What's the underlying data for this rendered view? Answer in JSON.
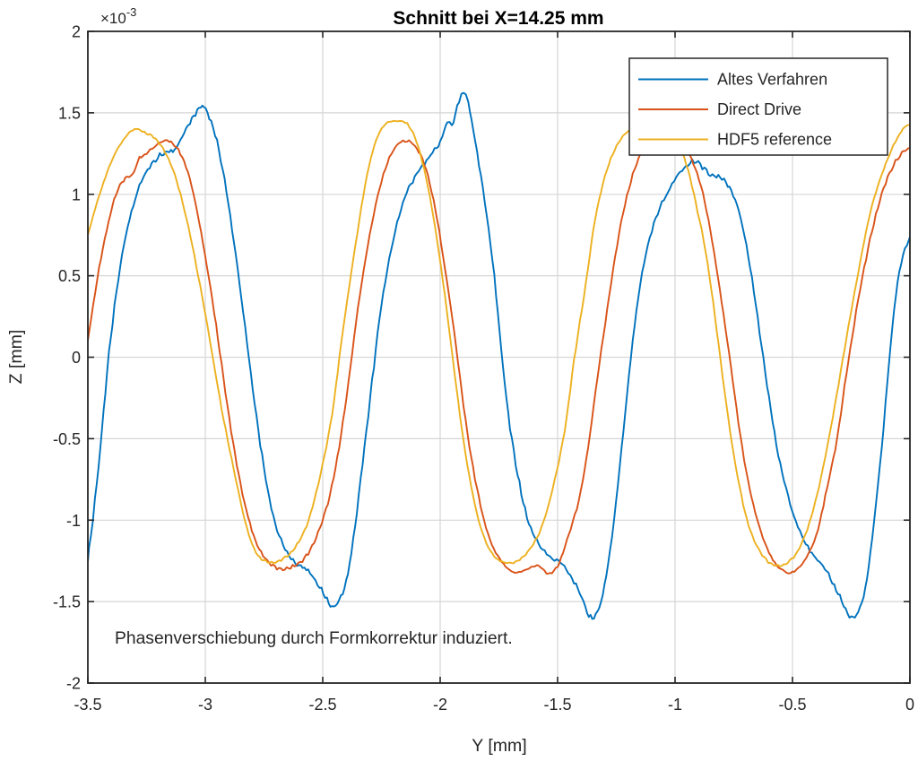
{
  "title": "Schnitt bei X=14.25 mm",
  "axes": {
    "offset_base": "×10",
    "offset_exp": "-3",
    "xlabel": "Y [mm]",
    "ylabel": "Z [mm]",
    "x_ticks": [
      "-3.5",
      "-3",
      "-2.5",
      "-2",
      "-1.5",
      "-1",
      "-0.5",
      "0"
    ],
    "y_ticks": [
      "2",
      "1.5",
      "1",
      "0.5",
      "0",
      "-0.5",
      "-1",
      "-1.5",
      "-2"
    ]
  },
  "annotation": "Phasenverschiebung durch Formkorrektur induziert.",
  "legend": {
    "items": [
      {
        "label": "Altes Verfahren",
        "color": "#0072BD"
      },
      {
        "label": "Direct Drive",
        "color": "#D95319"
      },
      {
        "label": "HDF5 reference",
        "color": "#EDB120"
      }
    ]
  },
  "colors": {
    "axis": "#262626",
    "grid": "#d6d6d6",
    "background": "#ffffff"
  },
  "chart_data": {
    "type": "line",
    "title": "Schnitt bei X=14.25 mm",
    "xlabel": "Y [mm]",
    "ylabel": "Z [mm]",
    "x_unit": "mm",
    "z_unit_scale": "1e-3 mm",
    "xlim": [
      -3.5,
      0
    ],
    "ylim_e3": [
      -2,
      2
    ],
    "grid": true,
    "legend_position": "top-right",
    "series": [
      {
        "name": "Altes Verfahren",
        "color": "#0072BD",
        "noise": 0.014,
        "seed": 7,
        "points_y_z_e3": [
          [
            -3.5,
            -1.25
          ],
          [
            -3.47,
            -0.88
          ],
          [
            -3.44,
            -0.45
          ],
          [
            -3.41,
            0.02
          ],
          [
            -3.37,
            0.48
          ],
          [
            -3.33,
            0.8
          ],
          [
            -3.28,
            1.05
          ],
          [
            -3.22,
            1.2
          ],
          [
            -3.17,
            1.26
          ],
          [
            -3.13,
            1.27
          ],
          [
            -3.09,
            1.38
          ],
          [
            -3.05,
            1.48
          ],
          [
            -3.02,
            1.54
          ],
          [
            -2.99,
            1.5
          ],
          [
            -2.95,
            1.32
          ],
          [
            -2.91,
            1.02
          ],
          [
            -2.87,
            0.62
          ],
          [
            -2.83,
            0.18
          ],
          [
            -2.79,
            -0.28
          ],
          [
            -2.75,
            -0.68
          ],
          [
            -2.71,
            -0.98
          ],
          [
            -2.66,
            -1.18
          ],
          [
            -2.61,
            -1.27
          ],
          [
            -2.57,
            -1.3
          ],
          [
            -2.53,
            -1.37
          ],
          [
            -2.49,
            -1.47
          ],
          [
            -2.46,
            -1.53
          ],
          [
            -2.43,
            -1.49
          ],
          [
            -2.4,
            -1.38
          ],
          [
            -2.37,
            -1.12
          ],
          [
            -2.33,
            -0.65
          ],
          [
            -2.29,
            -0.15
          ],
          [
            -2.25,
            0.32
          ],
          [
            -2.2,
            0.72
          ],
          [
            -2.15,
            0.98
          ],
          [
            -2.1,
            1.12
          ],
          [
            -2.05,
            1.22
          ],
          [
            -2.0,
            1.32
          ],
          [
            -1.97,
            1.45
          ],
          [
            -1.95,
            1.42
          ],
          [
            -1.92,
            1.58
          ],
          [
            -1.9,
            1.63
          ],
          [
            -1.88,
            1.55
          ],
          [
            -1.85,
            1.32
          ],
          [
            -1.81,
            0.95
          ],
          [
            -1.77,
            0.5
          ],
          [
            -1.74,
            0.05
          ],
          [
            -1.71,
            -0.35
          ],
          [
            -1.67,
            -0.72
          ],
          [
            -1.63,
            -0.98
          ],
          [
            -1.58,
            -1.15
          ],
          [
            -1.53,
            -1.23
          ],
          [
            -1.48,
            -1.27
          ],
          [
            -1.43,
            -1.38
          ],
          [
            -1.39,
            -1.5
          ],
          [
            -1.36,
            -1.6
          ],
          [
            -1.33,
            -1.56
          ],
          [
            -1.3,
            -1.4
          ],
          [
            -1.26,
            -1.0
          ],
          [
            -1.22,
            -0.45
          ],
          [
            -1.18,
            0.1
          ],
          [
            -1.14,
            0.52
          ],
          [
            -1.09,
            0.82
          ],
          [
            -1.03,
            1.02
          ],
          [
            -0.97,
            1.15
          ],
          [
            -0.91,
            1.2
          ],
          [
            -0.85,
            1.12
          ],
          [
            -0.8,
            1.1
          ],
          [
            -0.76,
            1.02
          ],
          [
            -0.72,
            0.85
          ],
          [
            -0.68,
            0.55
          ],
          [
            -0.64,
            0.15
          ],
          [
            -0.6,
            -0.25
          ],
          [
            -0.56,
            -0.6
          ],
          [
            -0.51,
            -0.9
          ],
          [
            -0.46,
            -1.1
          ],
          [
            -0.41,
            -1.22
          ],
          [
            -0.37,
            -1.28
          ],
          [
            -0.33,
            -1.38
          ],
          [
            -0.29,
            -1.5
          ],
          [
            -0.25,
            -1.6
          ],
          [
            -0.22,
            -1.56
          ],
          [
            -0.19,
            -1.42
          ],
          [
            -0.16,
            -1.1
          ],
          [
            -0.12,
            -0.55
          ],
          [
            -0.09,
            -0.05
          ],
          [
            -0.06,
            0.38
          ],
          [
            -0.03,
            0.62
          ],
          [
            0.0,
            0.73
          ]
        ]
      },
      {
        "name": "Direct Drive",
        "color": "#D95319",
        "noise": 0.009,
        "seed": 3,
        "points_y_z_e3": [
          [
            -3.5,
            0.1
          ],
          [
            -3.46,
            0.48
          ],
          [
            -3.42,
            0.78
          ],
          [
            -3.38,
            1.0
          ],
          [
            -3.34,
            1.1
          ],
          [
            -3.31,
            1.12
          ],
          [
            -3.28,
            1.22
          ],
          [
            -3.25,
            1.25
          ],
          [
            -3.21,
            1.3
          ],
          [
            -3.17,
            1.33
          ],
          [
            -3.13,
            1.3
          ],
          [
            -3.09,
            1.2
          ],
          [
            -3.05,
            1.0
          ],
          [
            -3.01,
            0.7
          ],
          [
            -2.97,
            0.35
          ],
          [
            -2.93,
            -0.05
          ],
          [
            -2.89,
            -0.45
          ],
          [
            -2.85,
            -0.78
          ],
          [
            -2.81,
            -1.02
          ],
          [
            -2.77,
            -1.18
          ],
          [
            -2.72,
            -1.27
          ],
          [
            -2.67,
            -1.3
          ],
          [
            -2.62,
            -1.28
          ],
          [
            -2.57,
            -1.22
          ],
          [
            -2.52,
            -1.08
          ],
          [
            -2.47,
            -0.85
          ],
          [
            -2.43,
            -0.55
          ],
          [
            -2.39,
            -0.15
          ],
          [
            -2.35,
            0.3
          ],
          [
            -2.3,
            0.75
          ],
          [
            -2.25,
            1.08
          ],
          [
            -2.2,
            1.27
          ],
          [
            -2.15,
            1.33
          ],
          [
            -2.1,
            1.28
          ],
          [
            -2.06,
            1.15
          ],
          [
            -2.02,
            0.9
          ],
          [
            -1.98,
            0.55
          ],
          [
            -1.94,
            0.15
          ],
          [
            -1.9,
            -0.3
          ],
          [
            -1.86,
            -0.68
          ],
          [
            -1.82,
            -0.96
          ],
          [
            -1.78,
            -1.15
          ],
          [
            -1.73,
            -1.27
          ],
          [
            -1.68,
            -1.32
          ],
          [
            -1.63,
            -1.3
          ],
          [
            -1.58,
            -1.28
          ],
          [
            -1.54,
            -1.33
          ],
          [
            -1.5,
            -1.28
          ],
          [
            -1.46,
            -1.12
          ],
          [
            -1.41,
            -0.88
          ],
          [
            -1.37,
            -0.55
          ],
          [
            -1.33,
            -0.12
          ],
          [
            -1.28,
            0.38
          ],
          [
            -1.23,
            0.82
          ],
          [
            -1.18,
            1.12
          ],
          [
            -1.13,
            1.28
          ],
          [
            -1.07,
            1.33
          ],
          [
            -1.0,
            1.32
          ],
          [
            -0.94,
            1.24
          ],
          [
            -0.89,
            1.05
          ],
          [
            -0.85,
            0.78
          ],
          [
            -0.81,
            0.42
          ],
          [
            -0.77,
            0.02
          ],
          [
            -0.73,
            -0.4
          ],
          [
            -0.69,
            -0.75
          ],
          [
            -0.65,
            -1.0
          ],
          [
            -0.6,
            -1.2
          ],
          [
            -0.55,
            -1.3
          ],
          [
            -0.5,
            -1.32
          ],
          [
            -0.45,
            -1.25
          ],
          [
            -0.4,
            -1.1
          ],
          [
            -0.36,
            -0.85
          ],
          [
            -0.31,
            -0.5
          ],
          [
            -0.27,
            -0.1
          ],
          [
            -0.22,
            0.35
          ],
          [
            -0.17,
            0.72
          ],
          [
            -0.12,
            1.0
          ],
          [
            -0.07,
            1.18
          ],
          [
            -0.02,
            1.27
          ],
          [
            0.0,
            1.28
          ]
        ]
      },
      {
        "name": "HDF5 reference",
        "color": "#EDB120",
        "noise": 0.006,
        "seed": 11,
        "points_y_z_e3": [
          [
            -3.5,
            0.75
          ],
          [
            -3.45,
            1.0
          ],
          [
            -3.4,
            1.2
          ],
          [
            -3.35,
            1.33
          ],
          [
            -3.3,
            1.4
          ],
          [
            -3.26,
            1.38
          ],
          [
            -3.22,
            1.35
          ],
          [
            -3.18,
            1.28
          ],
          [
            -3.13,
            1.12
          ],
          [
            -3.08,
            0.85
          ],
          [
            -3.03,
            0.5
          ],
          [
            -2.98,
            0.1
          ],
          [
            -2.93,
            -0.32
          ],
          [
            -2.88,
            -0.68
          ],
          [
            -2.84,
            -0.95
          ],
          [
            -2.8,
            -1.15
          ],
          [
            -2.76,
            -1.24
          ],
          [
            -2.71,
            -1.26
          ],
          [
            -2.66,
            -1.23
          ],
          [
            -2.61,
            -1.15
          ],
          [
            -2.56,
            -1.0
          ],
          [
            -2.51,
            -0.72
          ],
          [
            -2.46,
            -0.35
          ],
          [
            -2.42,
            0.1
          ],
          [
            -2.37,
            0.6
          ],
          [
            -2.32,
            1.05
          ],
          [
            -2.28,
            1.3
          ],
          [
            -2.24,
            1.42
          ],
          [
            -2.19,
            1.45
          ],
          [
            -2.14,
            1.43
          ],
          [
            -2.1,
            1.32
          ],
          [
            -2.06,
            1.1
          ],
          [
            -2.02,
            0.78
          ],
          [
            -1.98,
            0.38
          ],
          [
            -1.94,
            -0.08
          ],
          [
            -1.9,
            -0.52
          ],
          [
            -1.86,
            -0.85
          ],
          [
            -1.82,
            -1.08
          ],
          [
            -1.77,
            -1.22
          ],
          [
            -1.72,
            -1.26
          ],
          [
            -1.67,
            -1.25
          ],
          [
            -1.62,
            -1.18
          ],
          [
            -1.57,
            -1.05
          ],
          [
            -1.52,
            -0.8
          ],
          [
            -1.47,
            -0.45
          ],
          [
            -1.43,
            -0.02
          ],
          [
            -1.38,
            0.45
          ],
          [
            -1.34,
            0.85
          ],
          [
            -1.29,
            1.15
          ],
          [
            -1.24,
            1.32
          ],
          [
            -1.19,
            1.4
          ],
          [
            -1.13,
            1.43
          ],
          [
            -1.07,
            1.42
          ],
          [
            -1.01,
            1.36
          ],
          [
            -0.96,
            1.22
          ],
          [
            -0.92,
            1.0
          ],
          [
            -0.87,
            0.65
          ],
          [
            -0.83,
            0.25
          ],
          [
            -0.79,
            -0.2
          ],
          [
            -0.75,
            -0.6
          ],
          [
            -0.71,
            -0.9
          ],
          [
            -0.67,
            -1.1
          ],
          [
            -0.62,
            -1.23
          ],
          [
            -0.57,
            -1.28
          ],
          [
            -0.52,
            -1.26
          ],
          [
            -0.47,
            -1.17
          ],
          [
            -0.42,
            -0.98
          ],
          [
            -0.37,
            -0.68
          ],
          [
            -0.32,
            -0.3
          ],
          [
            -0.27,
            0.12
          ],
          [
            -0.22,
            0.52
          ],
          [
            -0.17,
            0.88
          ],
          [
            -0.12,
            1.12
          ],
          [
            -0.07,
            1.3
          ],
          [
            -0.03,
            1.4
          ],
          [
            0.0,
            1.43
          ]
        ]
      }
    ]
  }
}
